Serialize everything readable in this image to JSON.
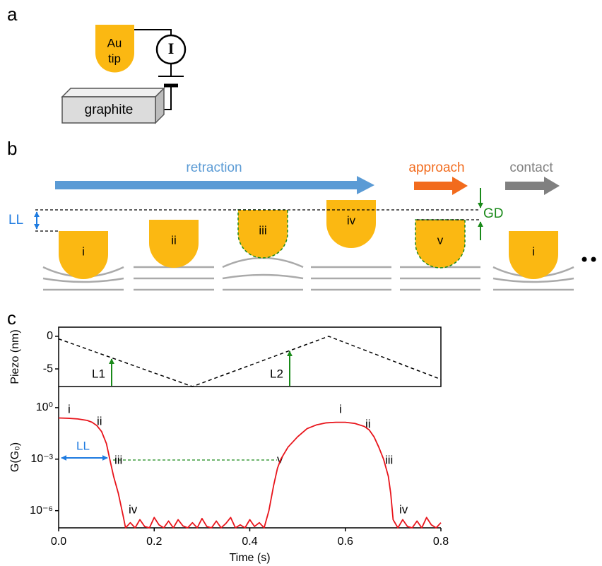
{
  "panel_a": {
    "label": "a",
    "tip": [
      "Au",
      "tip"
    ],
    "meter": "I",
    "sample": "graphite"
  },
  "panel_b": {
    "label": "b",
    "retraction": "retraction",
    "approach": "approach",
    "contact": "contact",
    "LL": "LL",
    "GD": "GD",
    "tips": [
      "i",
      "ii",
      "iii",
      "iv",
      "v",
      "i"
    ]
  },
  "panel_c": {
    "label": "c"
  },
  "chart_data": [
    {
      "type": "line",
      "ylabel": "Piezo (nm)",
      "line_style": "dashed",
      "x": [
        0,
        0.28,
        0.565,
        0.8
      ],
      "series": [
        {
          "color": "#000000",
          "values": [
            -0.4,
            -7.7,
            0,
            -6.6
          ]
        }
      ],
      "xlim": [
        0,
        0.8
      ],
      "ylim": [
        -7.7,
        1.4
      ],
      "yticks": [
        0,
        -5
      ],
      "annotations": [
        "L1",
        "L2"
      ]
    },
    {
      "type": "line",
      "ylabel": "G(G₀)",
      "xlabel": "Time (s)",
      "yscale": "log",
      "x": [
        0,
        0.02,
        0.04,
        0.06,
        0.07,
        0.08,
        0.09,
        0.1,
        0.107,
        0.115,
        0.125,
        0.135,
        0.14,
        0.15,
        0.16,
        0.17,
        0.18,
        0.19,
        0.2,
        0.21,
        0.22,
        0.23,
        0.24,
        0.25,
        0.26,
        0.27,
        0.28,
        0.29,
        0.3,
        0.31,
        0.32,
        0.33,
        0.34,
        0.35,
        0.36,
        0.37,
        0.38,
        0.39,
        0.4,
        0.41,
        0.42,
        0.43,
        0.44,
        0.45,
        0.458,
        0.465,
        0.48,
        0.5,
        0.52,
        0.54,
        0.56,
        0.58,
        0.6,
        0.62,
        0.64,
        0.65,
        0.66,
        0.67,
        0.68,
        0.69,
        0.695,
        0.7,
        0.71,
        0.72,
        0.73,
        0.74,
        0.75,
        0.76,
        0.77,
        0.78,
        0.79,
        0.8
      ],
      "series": [
        {
          "color": "#e8141b",
          "values": [
            0.25,
            0.24,
            0.22,
            0.18,
            0.14,
            0.09,
            0.04,
            0.008,
            0.001,
            0.0001,
            1e-05,
            5e-07,
            1e-07,
            2e-07,
            1e-07,
            3e-07,
            1.2e-07,
            1e-07,
            4e-07,
            1.5e-07,
            1e-07,
            2.5e-07,
            1e-07,
            3e-07,
            1.3e-07,
            1e-07,
            2e-07,
            1e-07,
            3.5e-07,
            1.2e-07,
            1e-07,
            2.5e-07,
            1e-07,
            1.8e-07,
            4e-07,
            1e-07,
            1.5e-07,
            1e-07,
            3e-07,
            1.2e-07,
            2e-07,
            1e-07,
            1e-06,
            3e-05,
            0.0003,
            0.001,
            0.005,
            0.02,
            0.06,
            0.1,
            0.13,
            0.14,
            0.14,
            0.12,
            0.08,
            0.05,
            0.02,
            0.005,
            0.001,
            0.0001,
            1e-05,
            3e-07,
            1e-07,
            3e-07,
            1.2e-07,
            1e-07,
            2.5e-07,
            1e-07,
            4e-07,
            1.5e-07,
            1e-07,
            2e-07
          ]
        }
      ],
      "xlim": [
        0,
        0.8
      ],
      "xticks": [
        {
          "value": 0,
          "label": "0.0"
        },
        0.2,
        0.4,
        0.6,
        0.8
      ],
      "ylim": [
        1e-07,
        17
      ],
      "yticks": [
        {
          "value": 1,
          "label": "10⁰"
        },
        {
          "value": 0.001,
          "label": "10⁻³"
        },
        {
          "value": 1e-06,
          "label": "10⁻⁶"
        }
      ],
      "annotations": [
        "i",
        "ii",
        "iii",
        "iv",
        "v",
        "i",
        "ii",
        "iii",
        "iv",
        "LL"
      ]
    }
  ]
}
